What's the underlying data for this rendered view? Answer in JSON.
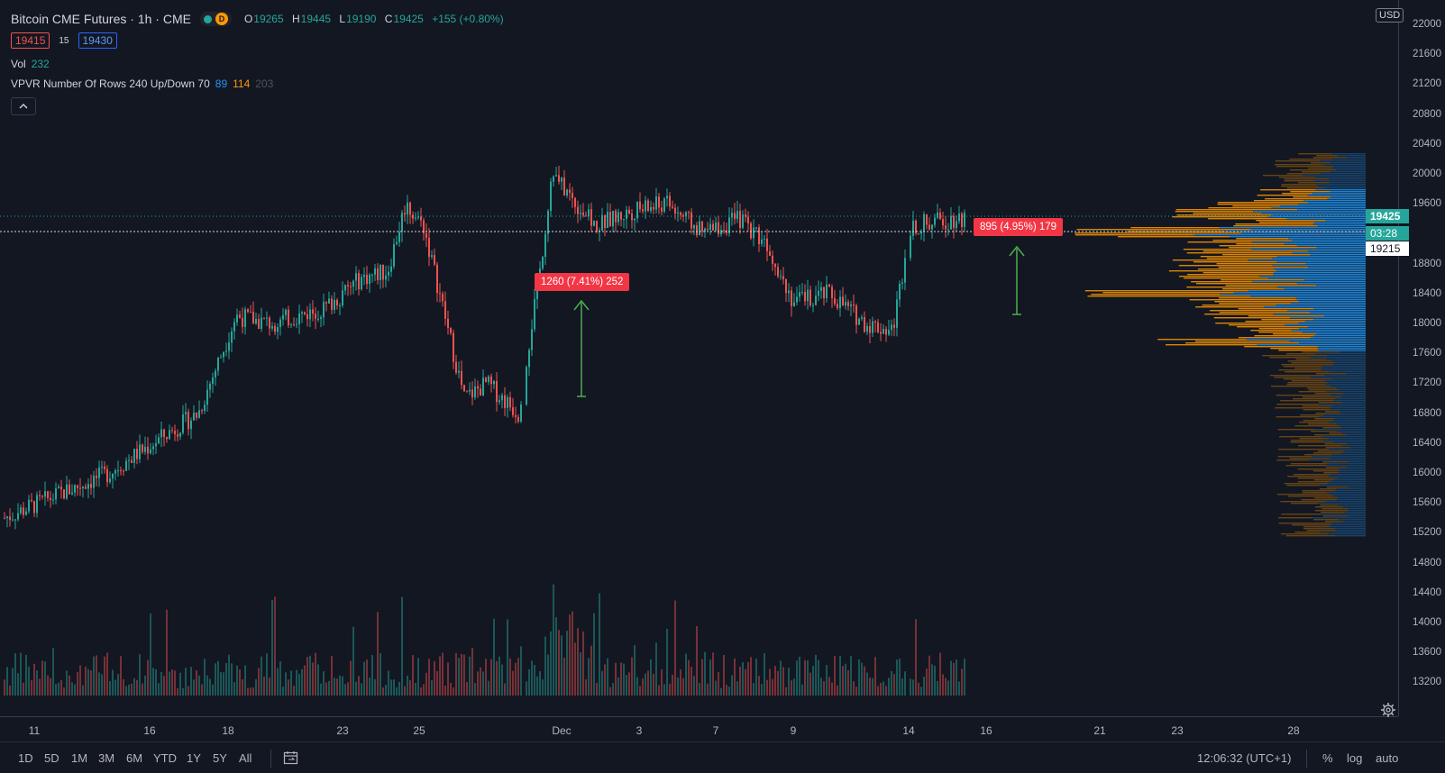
{
  "legend": {
    "title": "Bitcoin CME Futures · 1h · CME",
    "status_d": "D",
    "ohlc": [
      {
        "k": "O",
        "v": "19265"
      },
      {
        "k": "H",
        "v": "19445"
      },
      {
        "k": "L",
        "v": "19190"
      },
      {
        "k": "C",
        "v": "19425"
      },
      {
        "k": "",
        "v": "+155 (+0.80%)"
      }
    ],
    "bid": "19415",
    "spread": "15",
    "ask": "19430",
    "vol_label": "Vol",
    "vol_value": "232",
    "vpvr_label": "VPVR Number Of Rows 240 Up/Down 70",
    "vpvr_up": "89",
    "vpvr_down": "114",
    "vpvr_total": "203",
    "collapse_icon": "chevron-up-icon"
  },
  "price_scale": {
    "currency": "USD",
    "labels": [
      "22000",
      "21600",
      "21200",
      "20800",
      "20400",
      "20000",
      "19600",
      "18800",
      "18400",
      "18000",
      "17600",
      "17200",
      "16800",
      "16400",
      "16000",
      "15600",
      "15200",
      "14800",
      "14400",
      "14000",
      "13600",
      "13200"
    ],
    "last_price": "19425",
    "countdown": "03:28",
    "crosshair_price": "19215"
  },
  "time_scale": {
    "labels": [
      "11",
      "16",
      "18",
      "23",
      "25",
      "Dec",
      "3",
      "7",
      "9",
      "14",
      "16",
      "21",
      "23",
      "28"
    ],
    "settings_icon": "gear-icon"
  },
  "measurements": [
    {
      "text": "1260 (7.41%) 252"
    },
    {
      "text": "895 (4.95%) 179"
    }
  ],
  "toolbar": {
    "ranges": [
      "1D",
      "5D",
      "1M",
      "3M",
      "6M",
      "YTD",
      "1Y",
      "5Y",
      "All"
    ],
    "goto_icon": "calendar-goto-icon",
    "clock": "12:06:32 (UTC+1)",
    "percent": "%",
    "log": "log",
    "auto": "auto"
  },
  "colors": {
    "background": "#131722",
    "up": "#26a69a",
    "down": "#ef5350",
    "vpvr_up": "#2196f3",
    "vpvr_down": "#ff9800",
    "measure": "#f23645",
    "arrow": "#4caf50"
  },
  "chart_data": {
    "type": "candlestick",
    "title": "Bitcoin CME Futures, 1h, CME",
    "x": [
      "11",
      "16",
      "18",
      "23",
      "25",
      "Dec",
      "3",
      "7",
      "9",
      "14",
      "16",
      "21",
      "23",
      "28"
    ],
    "ylim": [
      13000,
      22200
    ],
    "price_path": [
      {
        "t": "11",
        "p": 15400
      },
      {
        "t": "14",
        "p": 16000
      },
      {
        "t": "16",
        "p": 16400
      },
      {
        "t": "17",
        "p": 16800
      },
      {
        "t": "18",
        "p": 18100
      },
      {
        "t": "19",
        "p": 18000
      },
      {
        "t": "21",
        "p": 18200
      },
      {
        "t": "23",
        "p": 18600
      },
      {
        "t": "24",
        "p": 18700
      },
      {
        "t": "25",
        "p": 19600
      },
      {
        "t": "26",
        "p": 19300
      },
      {
        "t": "27",
        "p": 17000
      },
      {
        "t": "28",
        "p": 17200
      },
      {
        "t": "29",
        "p": 16800
      },
      {
        "t": "30",
        "p": 18800
      },
      {
        "t": "Dec",
        "p": 20000
      },
      {
        "t": "2",
        "p": 19300
      },
      {
        "t": "3",
        "p": 19500
      },
      {
        "t": "4",
        "p": 19600
      },
      {
        "t": "5",
        "p": 19200
      },
      {
        "t": "7",
        "p": 19400
      },
      {
        "t": "8",
        "p": 19100
      },
      {
        "t": "9",
        "p": 18300
      },
      {
        "t": "10",
        "p": 18400
      },
      {
        "t": "11",
        "p": 18000
      },
      {
        "t": "13",
        "p": 17900
      },
      {
        "t": "14",
        "p": 19300
      },
      {
        "t": "15",
        "p": 19425
      }
    ],
    "last": {
      "open": 19265,
      "high": 19445,
      "low": 19190,
      "close": 19425,
      "change": 155,
      "change_pct": 0.8
    },
    "volume_last": 232,
    "measurements": [
      {
        "from": 17000,
        "to": 18260,
        "delta": 1260,
        "pct": 7.41,
        "bars": 252
      },
      {
        "from": 18100,
        "to": 18995,
        "delta": 895,
        "pct": 4.95,
        "bars": 179
      }
    ]
  }
}
